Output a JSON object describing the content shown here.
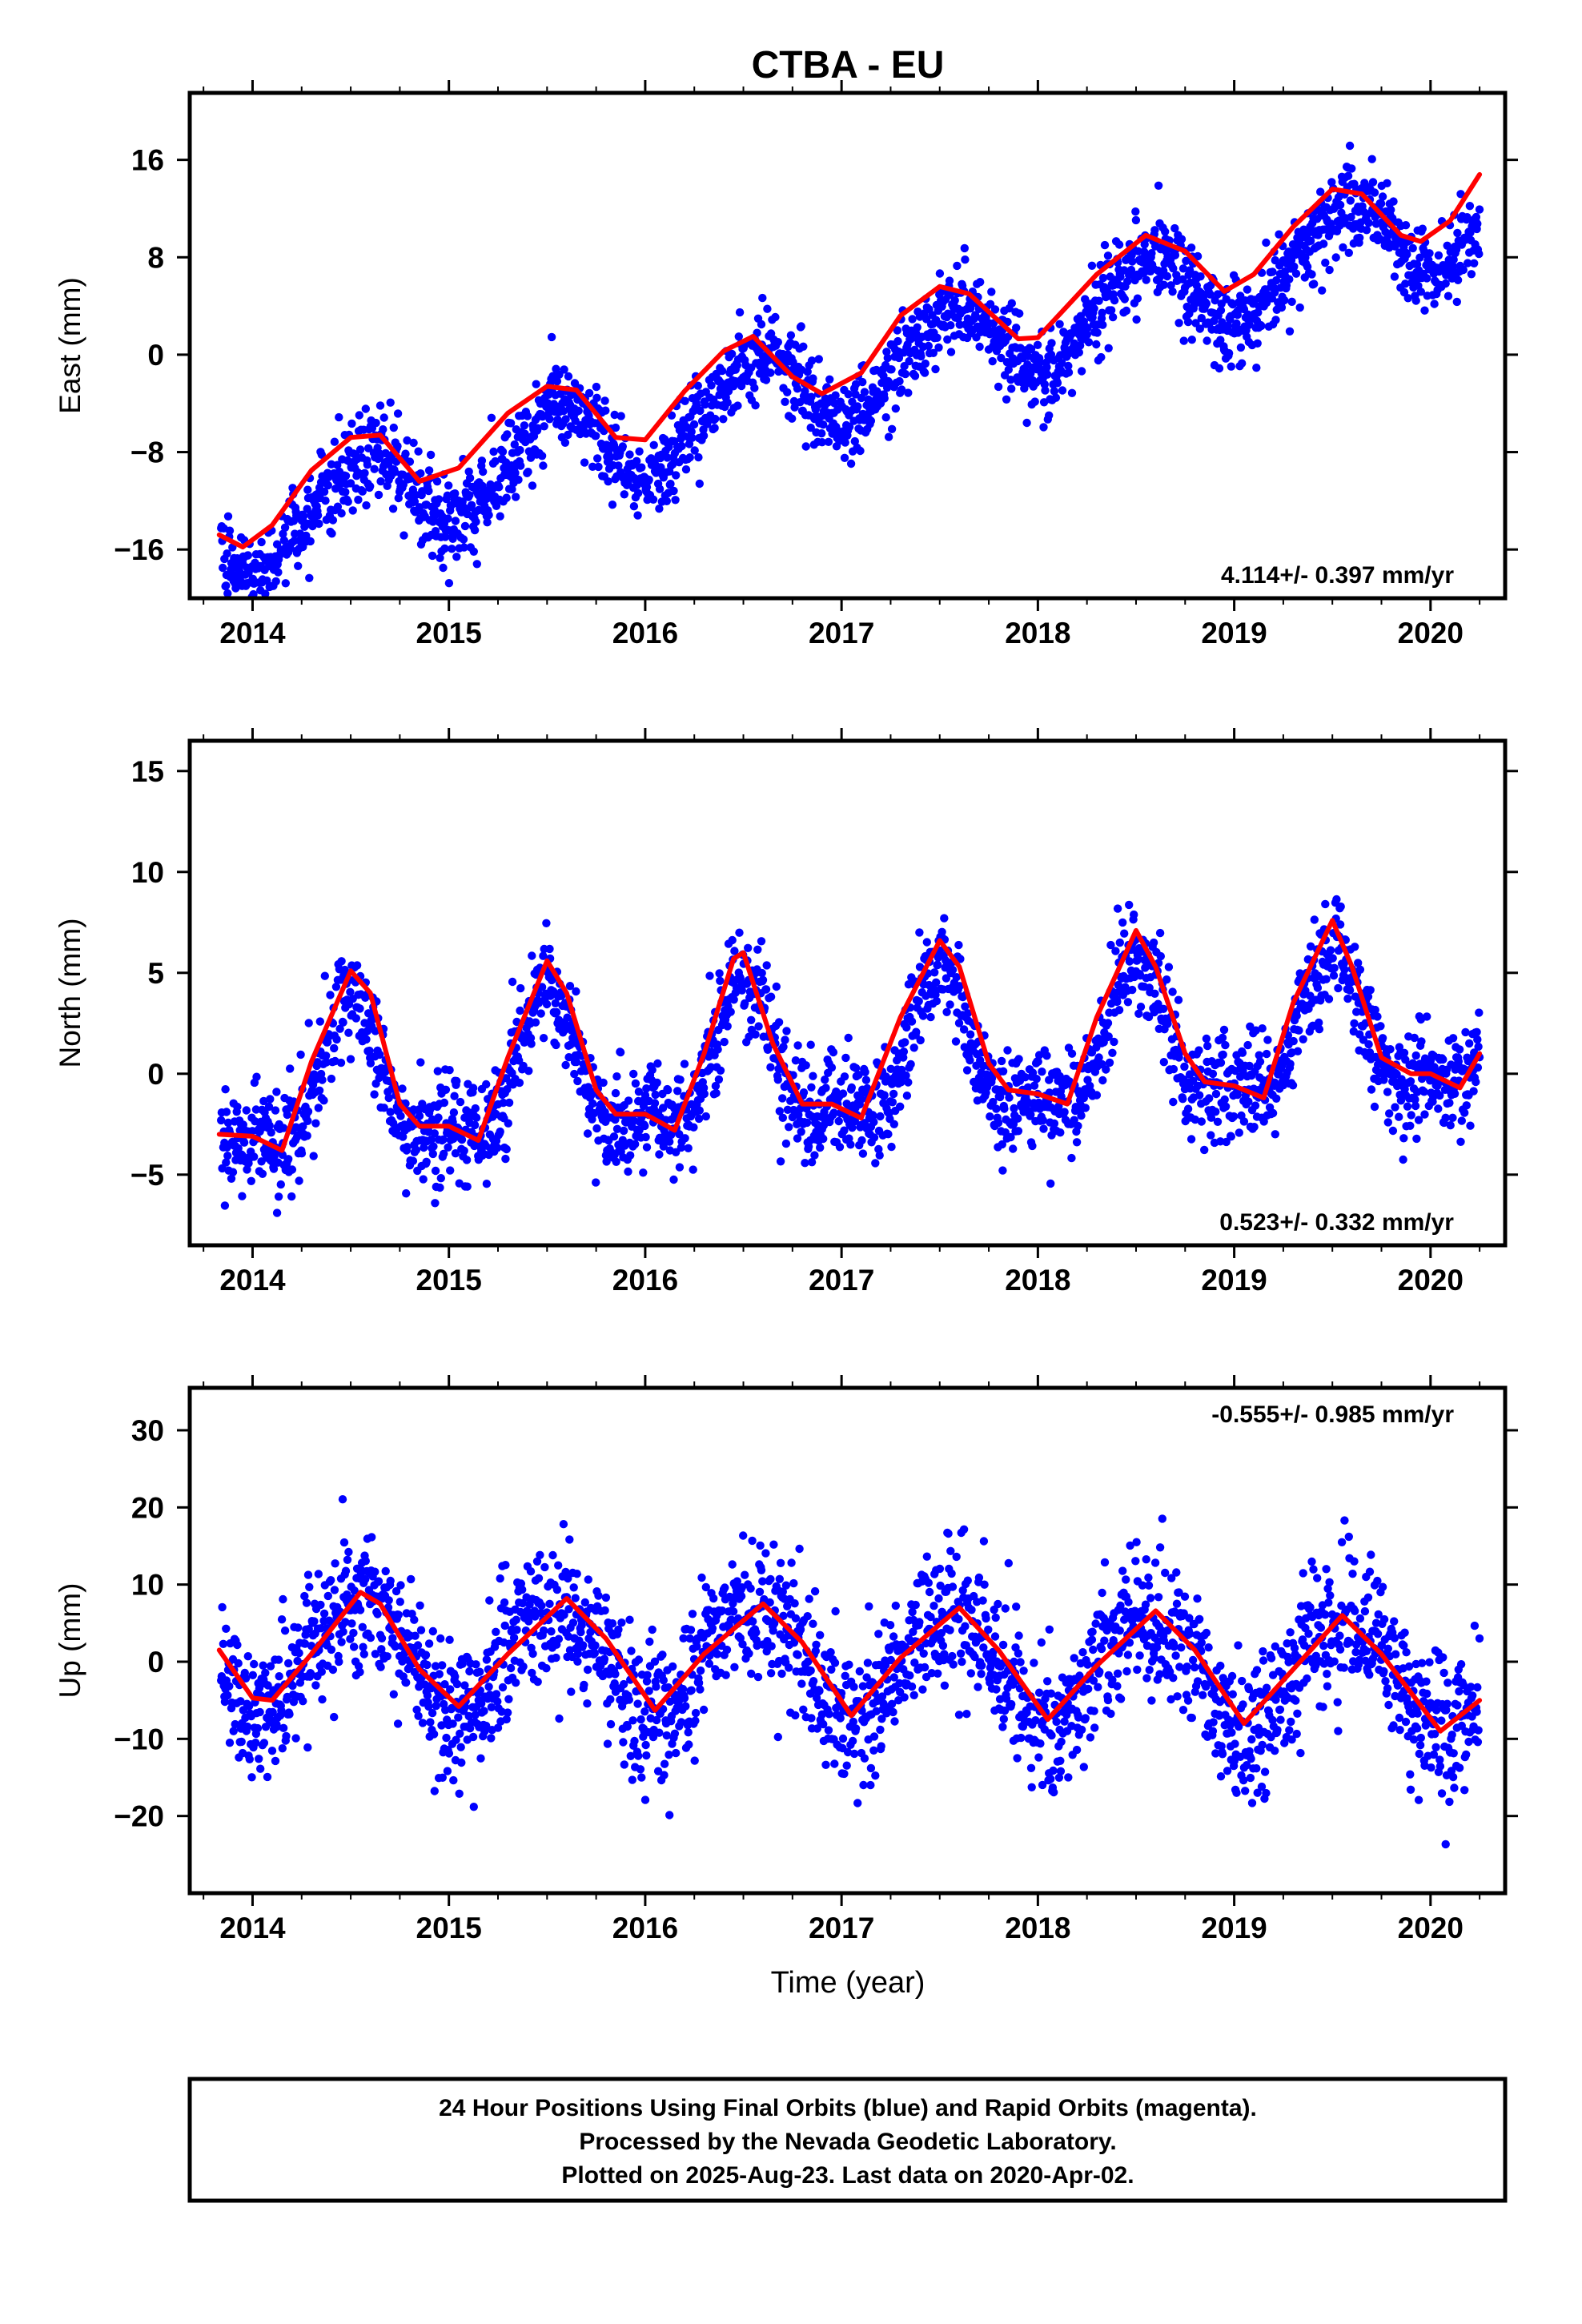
{
  "chart_data": {
    "title": "CTBA - EU",
    "xlabel": "Time (year)",
    "x_tick_labels": [
      "2014",
      "2015",
      "2016",
      "2017",
      "2018",
      "2019",
      "2020"
    ],
    "x_range": [
      2013.68,
      2020.38
    ],
    "series_colors": {
      "final_orbits": "#0000ff",
      "fit": "#ff0000",
      "rapid_orbits": "#ff00ff"
    },
    "panels": [
      {
        "type": "scatter",
        "ylabel": "East (mm)",
        "y_ticks": [
          16,
          8,
          0,
          -8,
          -16
        ],
        "y_tick_labels": [
          "16",
          "8",
          "0",
          "−8",
          "−16"
        ],
        "ylim": [
          -20,
          21.5
        ],
        "rate_label": "4.114+/- 0.397 mm/yr",
        "rate_position": "bottom-right",
        "model": {
          "trend": [
            4.114,
            -15.0,
            2013.84
          ],
          "annual_amp": 3.5,
          "annual_peak": 0.55,
          "semiannual_amp": 0.4,
          "semiannual_peak": 0.2,
          "noise_sd": 1.8
        },
        "fit_curve": [
          [
            2013.83,
            -14.8
          ],
          [
            2013.95,
            -15.8
          ],
          [
            2014.1,
            -14.0
          ],
          [
            2014.3,
            -9.5
          ],
          [
            2014.5,
            -6.8
          ],
          [
            2014.65,
            -6.6
          ],
          [
            2014.85,
            -10.4
          ],
          [
            2015.05,
            -9.3
          ],
          [
            2015.3,
            -4.8
          ],
          [
            2015.5,
            -2.6
          ],
          [
            2015.65,
            -2.9
          ],
          [
            2015.85,
            -6.8
          ],
          [
            2016.0,
            -7.0
          ],
          [
            2016.2,
            -3.0
          ],
          [
            2016.4,
            0.3
          ],
          [
            2016.55,
            1.5
          ],
          [
            2016.75,
            -1.8
          ],
          [
            2016.9,
            -3.2
          ],
          [
            2017.1,
            -1.5
          ],
          [
            2017.3,
            3.2
          ],
          [
            2017.5,
            5.6
          ],
          [
            2017.65,
            5.0
          ],
          [
            2017.9,
            1.3
          ],
          [
            2018.0,
            1.4
          ],
          [
            2018.3,
            6.6
          ],
          [
            2018.55,
            9.8
          ],
          [
            2018.75,
            8.5
          ],
          [
            2018.95,
            5.2
          ],
          [
            2019.1,
            6.6
          ],
          [
            2019.3,
            10.5
          ],
          [
            2019.5,
            13.6
          ],
          [
            2019.65,
            13.2
          ],
          [
            2019.85,
            9.8
          ],
          [
            2019.95,
            9.3
          ],
          [
            2020.1,
            11.0
          ],
          [
            2020.25,
            14.8
          ]
        ]
      },
      {
        "type": "scatter",
        "ylabel": "North (mm)",
        "y_ticks": [
          15,
          10,
          5,
          0,
          -5
        ],
        "y_tick_labels": [
          "15",
          "10",
          "5",
          "0",
          "−5"
        ],
        "ylim": [
          -8.5,
          16.5
        ],
        "rate_label": "0.523+/- 0.332 mm/yr",
        "rate_position": "bottom-right",
        "model": {
          "trend": [
            0.523,
            -1.3,
            2013.84
          ],
          "annual_amp": 3.3,
          "annual_peak": 0.5,
          "semiannual_amp": 1.3,
          "semiannual_peak": 0.5,
          "noise_sd": 1.3
        },
        "fit_curve": [
          [
            2013.83,
            -3.0
          ],
          [
            2014.0,
            -3.1
          ],
          [
            2014.15,
            -3.8
          ],
          [
            2014.3,
            0.6
          ],
          [
            2014.5,
            5.1
          ],
          [
            2014.6,
            4.0
          ],
          [
            2014.75,
            -1.5
          ],
          [
            2014.85,
            -2.6
          ],
          [
            2015.0,
            -2.6
          ],
          [
            2015.15,
            -3.3
          ],
          [
            2015.3,
            0.8
          ],
          [
            2015.5,
            5.6
          ],
          [
            2015.6,
            4.0
          ],
          [
            2015.75,
            -0.8
          ],
          [
            2015.85,
            -2.0
          ],
          [
            2016.0,
            -2.0
          ],
          [
            2016.15,
            -2.8
          ],
          [
            2016.3,
            1.0
          ],
          [
            2016.45,
            5.7
          ],
          [
            2016.5,
            6.0
          ],
          [
            2016.65,
            1.5
          ],
          [
            2016.8,
            -1.5
          ],
          [
            2016.95,
            -1.5
          ],
          [
            2017.1,
            -2.2
          ],
          [
            2017.3,
            2.8
          ],
          [
            2017.5,
            6.6
          ],
          [
            2017.6,
            5.3
          ],
          [
            2017.75,
            0.5
          ],
          [
            2017.85,
            -0.8
          ],
          [
            2018.0,
            -1.0
          ],
          [
            2018.15,
            -1.5
          ],
          [
            2018.3,
            2.8
          ],
          [
            2018.5,
            7.1
          ],
          [
            2018.6,
            5.3
          ],
          [
            2018.75,
            1.0
          ],
          [
            2018.85,
            -0.4
          ],
          [
            2019.0,
            -0.6
          ],
          [
            2019.15,
            -1.2
          ],
          [
            2019.3,
            3.5
          ],
          [
            2019.5,
            7.6
          ],
          [
            2019.6,
            5.3
          ],
          [
            2019.75,
            0.8
          ],
          [
            2019.9,
            0.0
          ],
          [
            2020.0,
            0.0
          ],
          [
            2020.15,
            -0.7
          ],
          [
            2020.25,
            1.0
          ]
        ]
      },
      {
        "type": "scatter",
        "ylabel": "Up (mm)",
        "y_ticks": [
          30,
          20,
          10,
          0,
          -10,
          -20
        ],
        "y_tick_labels": [
          "30",
          "20",
          "10",
          "0",
          "−10",
          "−20"
        ],
        "ylim": [
          -30,
          35.5
        ],
        "rate_label": "-0.555+/- 0.985 mm/yr",
        "rate_position": "top-right",
        "model": {
          "trend": [
            -0.555,
            1.5,
            2013.84
          ],
          "annual_amp": 7.0,
          "annual_peak": 0.55,
          "semiannual_amp": 0.8,
          "semiannual_peak": 0.3,
          "noise_sd": 4.5
        },
        "fit_curve": [
          [
            2013.83,
            1.5
          ],
          [
            2014.0,
            -4.7
          ],
          [
            2014.1,
            -5.0
          ],
          [
            2014.3,
            1.0
          ],
          [
            2014.55,
            9.0
          ],
          [
            2014.65,
            7.5
          ],
          [
            2014.85,
            -1.0
          ],
          [
            2015.05,
            -5.8
          ],
          [
            2015.3,
            1.0
          ],
          [
            2015.6,
            8.2
          ],
          [
            2015.8,
            3.0
          ],
          [
            2016.05,
            -6.3
          ],
          [
            2016.3,
            1.0
          ],
          [
            2016.6,
            7.5
          ],
          [
            2016.8,
            2.5
          ],
          [
            2017.05,
            -7.0
          ],
          [
            2017.3,
            0.5
          ],
          [
            2017.6,
            7.0
          ],
          [
            2017.8,
            1.5
          ],
          [
            2018.05,
            -7.5
          ],
          [
            2018.3,
            -0.5
          ],
          [
            2018.6,
            6.6
          ],
          [
            2018.8,
            1.5
          ],
          [
            2019.05,
            -8.0
          ],
          [
            2019.3,
            -1.0
          ],
          [
            2019.55,
            6.0
          ],
          [
            2019.75,
            1.0
          ],
          [
            2020.05,
            -9.0
          ],
          [
            2020.25,
            -5.0
          ]
        ]
      }
    ]
  },
  "footer": {
    "line1": "24 Hour Positions Using Final Orbits (blue) and Rapid Orbits (magenta).",
    "line2": "Processed by the Nevada Geodetic Laboratory.",
    "line3": "Plotted on 2025-Aug-23. Last data on 2020-Apr-02."
  }
}
